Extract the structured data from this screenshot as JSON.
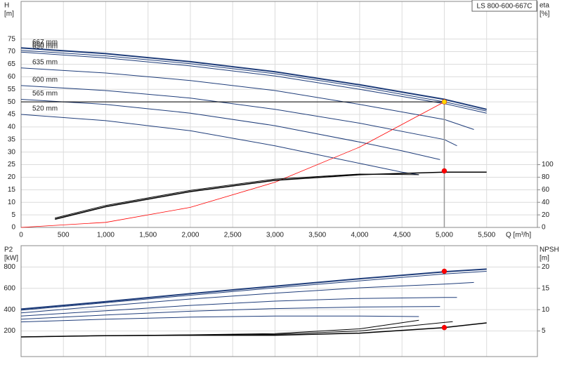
{
  "chart_data": [
    {
      "type": "line",
      "title": "LS 800-600-667C",
      "ylabel": "H",
      "yunit": "[m]",
      "y2label": "eta",
      "y2unit": "[%]",
      "xlabel": "Q [m³/h]",
      "xlim": [
        0,
        6100
      ],
      "show_xtick_labels": true,
      "xticks": [
        0,
        500,
        {
          "value": 1000,
          "label": "1,000"
        },
        {
          "value": 1500,
          "label": "1,500"
        },
        {
          "value": 2000,
          "label": "2,000"
        },
        {
          "value": 2500,
          "label": "2,500"
        },
        {
          "value": 3000,
          "label": "3,000"
        },
        {
          "value": 3500,
          "label": "3,500"
        },
        {
          "value": 4000,
          "label": "4,000"
        },
        {
          "value": 4500,
          "label": "4,500"
        },
        {
          "value": 5000,
          "label": "5,000"
        },
        {
          "value": 5500,
          "label": "5,500"
        }
      ],
      "ylim": [
        0,
        90
      ],
      "yticks": [
        0,
        5,
        10,
        15,
        20,
        25,
        30,
        35,
        40,
        45,
        50,
        55,
        60,
        65,
        70,
        75
      ],
      "y2lim": [
        0,
        360
      ],
      "y2ticks": [
        0,
        20,
        40,
        60,
        80,
        100
      ],
      "grid": true,
      "series": [
        {
          "name": "667 mm",
          "color": "#1f3d7a",
          "width": 2,
          "x": [
            0,
            1000,
            2000,
            3000,
            4000,
            5000,
            5500
          ],
          "values": [
            71.5,
            69.2,
            66,
            62,
            56.8,
            51,
            47
          ]
        },
        {
          "name": "660 mm",
          "color": "#1f3d7a",
          "width": 1,
          "x": [
            0,
            1000,
            2000,
            3000,
            4000,
            5000,
            5500
          ],
          "values": [
            70.5,
            68.3,
            65.2,
            61.2,
            56,
            50,
            46.3
          ]
        },
        {
          "name": "650 mm",
          "color": "#1f3d7a",
          "width": 1,
          "x": [
            0,
            1000,
            2000,
            3000,
            4000,
            5000,
            5500
          ],
          "values": [
            69.8,
            67.5,
            64.3,
            60.3,
            55,
            49.3,
            45.5
          ]
        },
        {
          "name": "635 mm",
          "color": "#1f3d7a",
          "width": 1,
          "x": [
            0,
            1000,
            2000,
            3000,
            4000,
            5000,
            5350
          ],
          "values": [
            63.5,
            61.5,
            58.5,
            54.5,
            49,
            43,
            39
          ]
        },
        {
          "name": "600 mm",
          "color": "#1f3d7a",
          "width": 1,
          "x": [
            0,
            1000,
            2000,
            3000,
            4000,
            5000,
            5150
          ],
          "values": [
            56.5,
            54.5,
            51.5,
            47,
            41.5,
            35,
            32.5
          ]
        },
        {
          "name": "565 mm",
          "color": "#1f3d7a",
          "width": 1,
          "x": [
            0,
            1000,
            2000,
            3000,
            4000,
            4500,
            4950
          ],
          "values": [
            51,
            49,
            45.5,
            40.5,
            34,
            30.5,
            27
          ]
        },
        {
          "name": "520 mm",
          "color": "#1f3d7a",
          "width": 1,
          "x": [
            0,
            1000,
            2000,
            3000,
            4000,
            4500,
            4700
          ],
          "values": [
            45,
            42.5,
            38.5,
            32.5,
            25.5,
            22,
            21
          ]
        },
        {
          "color": "#ff0000",
          "width": 0.8,
          "x": [
            0,
            1000,
            2000,
            3000,
            4000,
            5000
          ],
          "values": [
            0,
            2,
            8,
            18,
            32,
            50
          ]
        },
        {
          "color": "#000000",
          "width": 1.5,
          "axis": "y2",
          "x": [
            400,
            1000,
            2000,
            3000,
            4000,
            5000,
            5500
          ],
          "values": [
            13,
            33,
            57,
            75,
            84,
            88,
            88
          ]
        },
        {
          "color": "#000000",
          "width": 1,
          "axis": "y2",
          "x": [
            400,
            1000,
            2000,
            3000,
            4000,
            4700
          ],
          "values": [
            15,
            35,
            59,
            77,
            85,
            84
          ]
        }
      ],
      "points": [
        {
          "x": 5000,
          "y": 50,
          "color": "#ffd700",
          "crosshair": true
        },
        {
          "x": 5000,
          "y": 90,
          "color": "#ff0000",
          "axis": "y2"
        }
      ]
    },
    {
      "type": "line",
      "ylabel": "P2",
      "yunit": "[kW]",
      "y2label": "NPSH",
      "y2unit": "[m]",
      "xlim": [
        0,
        6100
      ],
      "show_xtick_labels": false,
      "xticks": [
        0,
        500,
        1000,
        1500,
        2000,
        2500,
        3000,
        3500,
        4000,
        4500,
        5000,
        5500
      ],
      "ylim": [
        -40,
        1000
      ],
      "yticks": [
        200,
        400,
        600,
        800
      ],
      "y2lim": [
        -1,
        25
      ],
      "y2ticks": [
        5,
        10,
        15,
        20
      ],
      "grid": true,
      "series": [
        {
          "color": "#1f3d7a",
          "width": 2,
          "x": [
            0,
            1000,
            2000,
            3000,
            4000,
            5000,
            5500
          ],
          "values": [
            405,
            475,
            550,
            620,
            690,
            755,
            780
          ]
        },
        {
          "color": "#1f3d7a",
          "width": 1,
          "x": [
            0,
            1000,
            2000,
            3000,
            4000,
            5000,
            5500
          ],
          "values": [
            395,
            465,
            535,
            605,
            670,
            735,
            760
          ]
        },
        {
          "color": "#1f3d7a",
          "width": 1,
          "x": [
            0,
            1000,
            2000,
            3000,
            4000,
            5000,
            5350
          ],
          "values": [
            370,
            435,
            500,
            555,
            605,
            640,
            655
          ]
        },
        {
          "color": "#1f3d7a",
          "width": 1,
          "x": [
            0,
            1000,
            2000,
            3000,
            4000,
            5000,
            5150
          ],
          "values": [
            340,
            390,
            440,
            480,
            505,
            515,
            515
          ]
        },
        {
          "color": "#1f3d7a",
          "width": 1,
          "x": [
            0,
            1000,
            2000,
            3000,
            4000,
            4950
          ],
          "values": [
            310,
            350,
            385,
            410,
            425,
            430
          ]
        },
        {
          "color": "#1f3d7a",
          "width": 1,
          "x": [
            0,
            1000,
            2000,
            3000,
            4000,
            4700
          ],
          "values": [
            285,
            310,
            330,
            340,
            340,
            335
          ]
        },
        {
          "color": "#000000",
          "width": 1.5,
          "axis": "y2",
          "x": [
            0,
            1000,
            2000,
            3000,
            4000,
            5000,
            5500
          ],
          "values": [
            3.6,
            3.9,
            4.0,
            4.0,
            4.5,
            5.8,
            6.9
          ]
        },
        {
          "color": "#000000",
          "width": 1,
          "axis": "y2",
          "x": [
            0,
            1000,
            2000,
            3000,
            4000,
            4700
          ],
          "values": [
            3.6,
            3.9,
            4.1,
            4.4,
            5.5,
            7.5
          ]
        },
        {
          "color": "#000000",
          "width": 1,
          "axis": "y2",
          "x": [
            0,
            1000,
            2000,
            3000,
            4000,
            5100
          ],
          "values": [
            3.6,
            3.9,
            4.0,
            4.2,
            5.0,
            7.2
          ]
        }
      ],
      "points": [
        {
          "x": 5000,
          "y": 760,
          "color": "#ff0000"
        },
        {
          "x": 5000,
          "y": 5.8,
          "color": "#ff0000",
          "axis": "y2"
        }
      ]
    }
  ]
}
